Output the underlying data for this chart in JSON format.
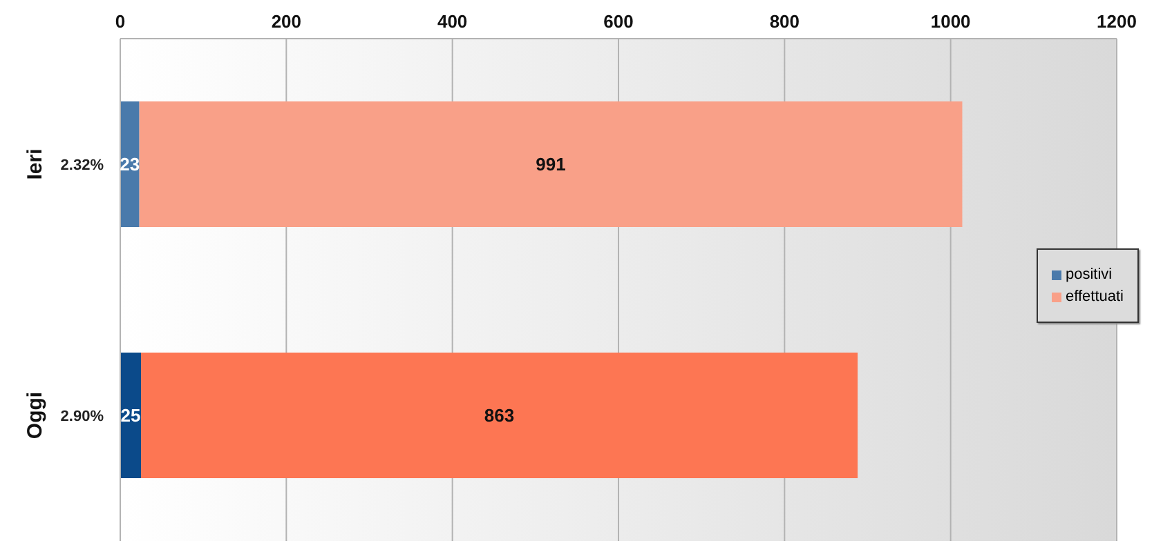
{
  "chart_data": {
    "type": "bar",
    "orientation": "horizontal",
    "stacked": true,
    "categories": [
      "Ieri",
      "Oggi"
    ],
    "series": [
      {
        "name": "positivi",
        "color": "#4a7aab",
        "colors": [
          "#4a7aab",
          "#0b4a8a"
        ],
        "values": [
          23,
          25
        ]
      },
      {
        "name": "effettuati",
        "color": "#f9a088",
        "colors": [
          "#f9a088",
          "#fd7653"
        ],
        "values": [
          991,
          863
        ]
      }
    ],
    "xlim": [
      0,
      1200
    ],
    "xticks": [
      0,
      200,
      400,
      600,
      800,
      1000,
      1200
    ],
    "grid": "x",
    "legend": "right",
    "data_labels": true,
    "annotations": [
      "2.32%",
      "2.90%"
    ]
  }
}
